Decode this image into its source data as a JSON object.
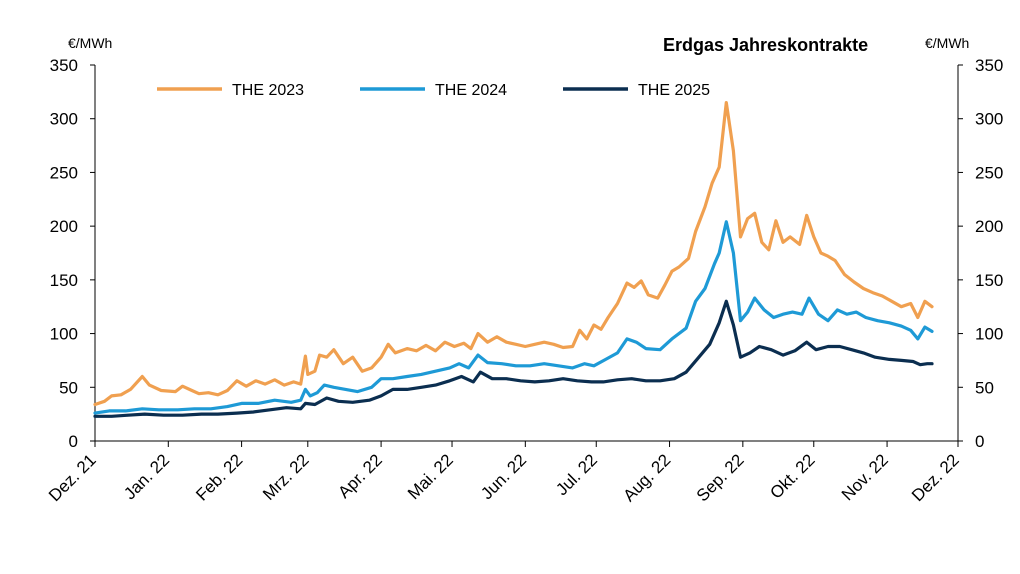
{
  "chart_data": {
    "type": "line",
    "title": "Erdgas Jahreskontrakte",
    "ylabel_left": "€/MWh",
    "ylabel_right": "€/MWh",
    "ylim": [
      0,
      350
    ],
    "yticks": [
      0,
      50,
      100,
      150,
      200,
      250,
      300,
      350
    ],
    "xlim": [
      "2021-12-01",
      "2022-12-01"
    ],
    "xtick_labels": [
      "Dez. 21",
      "Jan. 22",
      "Feb. 22",
      "Mrz. 22",
      "Apr. 22",
      "Mai. 22",
      "Jun. 22",
      "Jul. 22",
      "Aug. 22",
      "Sep. 22",
      "Okt. 22",
      "Nov. 22",
      "Dez. 22"
    ],
    "xtick_dates": [
      "2021-12-01",
      "2022-01-01",
      "2022-02-01",
      "2022-03-01",
      "2022-04-01",
      "2022-05-01",
      "2022-06-01",
      "2022-07-01",
      "2022-08-01",
      "2022-09-01",
      "2022-10-01",
      "2022-11-01",
      "2022-12-01"
    ],
    "grid": false,
    "legend_position": "top",
    "series": [
      {
        "name": "THE 2023",
        "color": "#F0A050",
        "points": [
          [
            "2021-12-01",
            34
          ],
          [
            "2021-12-05",
            37
          ],
          [
            "2021-12-08",
            42
          ],
          [
            "2021-12-12",
            43
          ],
          [
            "2021-12-16",
            48
          ],
          [
            "2021-12-21",
            60
          ],
          [
            "2021-12-24",
            52
          ],
          [
            "2021-12-29",
            47
          ],
          [
            "2022-01-04",
            46
          ],
          [
            "2022-01-07",
            51
          ],
          [
            "2022-01-11",
            47
          ],
          [
            "2022-01-14",
            44
          ],
          [
            "2022-01-18",
            45
          ],
          [
            "2022-01-22",
            43
          ],
          [
            "2022-01-26",
            47
          ],
          [
            "2022-01-30",
            56
          ],
          [
            "2022-02-03",
            51
          ],
          [
            "2022-02-07",
            56
          ],
          [
            "2022-02-11",
            53
          ],
          [
            "2022-02-15",
            57
          ],
          [
            "2022-02-19",
            52
          ],
          [
            "2022-02-23",
            55
          ],
          [
            "2022-02-26",
            53
          ],
          [
            "2022-02-28",
            79
          ],
          [
            "2022-03-01",
            62
          ],
          [
            "2022-03-04",
            65
          ],
          [
            "2022-03-06",
            80
          ],
          [
            "2022-03-09",
            78
          ],
          [
            "2022-03-12",
            85
          ],
          [
            "2022-03-16",
            72
          ],
          [
            "2022-03-20",
            78
          ],
          [
            "2022-03-24",
            65
          ],
          [
            "2022-03-28",
            68
          ],
          [
            "2022-04-01",
            78
          ],
          [
            "2022-04-04",
            90
          ],
          [
            "2022-04-07",
            82
          ],
          [
            "2022-04-12",
            86
          ],
          [
            "2022-04-16",
            84
          ],
          [
            "2022-04-20",
            89
          ],
          [
            "2022-04-24",
            84
          ],
          [
            "2022-04-28",
            92
          ],
          [
            "2022-05-02",
            88
          ],
          [
            "2022-05-06",
            91
          ],
          [
            "2022-05-09",
            86
          ],
          [
            "2022-05-12",
            100
          ],
          [
            "2022-05-16",
            92
          ],
          [
            "2022-05-20",
            97
          ],
          [
            "2022-05-24",
            92
          ],
          [
            "2022-05-28",
            90
          ],
          [
            "2022-06-01",
            88
          ],
          [
            "2022-06-05",
            90
          ],
          [
            "2022-06-09",
            92
          ],
          [
            "2022-06-13",
            90
          ],
          [
            "2022-06-17",
            87
          ],
          [
            "2022-06-21",
            88
          ],
          [
            "2022-06-24",
            103
          ],
          [
            "2022-06-27",
            95
          ],
          [
            "2022-06-30",
            108
          ],
          [
            "2022-07-03",
            104
          ],
          [
            "2022-07-06",
            115
          ],
          [
            "2022-07-10",
            128
          ],
          [
            "2022-07-14",
            147
          ],
          [
            "2022-07-17",
            143
          ],
          [
            "2022-07-20",
            149
          ],
          [
            "2022-07-23",
            136
          ],
          [
            "2022-07-27",
            133
          ],
          [
            "2022-07-30",
            145
          ],
          [
            "2022-08-02",
            158
          ],
          [
            "2022-08-05",
            162
          ],
          [
            "2022-08-09",
            170
          ],
          [
            "2022-08-12",
            195
          ],
          [
            "2022-08-16",
            218
          ],
          [
            "2022-08-19",
            240
          ],
          [
            "2022-08-22",
            255
          ],
          [
            "2022-08-25",
            315
          ],
          [
            "2022-08-28",
            270
          ],
          [
            "2022-08-31",
            190
          ],
          [
            "2022-09-03",
            207
          ],
          [
            "2022-09-06",
            212
          ],
          [
            "2022-09-09",
            185
          ],
          [
            "2022-09-12",
            178
          ],
          [
            "2022-09-15",
            205
          ],
          [
            "2022-09-18",
            185
          ],
          [
            "2022-09-21",
            190
          ],
          [
            "2022-09-25",
            183
          ],
          [
            "2022-09-28",
            210
          ],
          [
            "2022-10-01",
            190
          ],
          [
            "2022-10-04",
            175
          ],
          [
            "2022-10-07",
            172
          ],
          [
            "2022-10-10",
            168
          ],
          [
            "2022-10-14",
            155
          ],
          [
            "2022-10-18",
            148
          ],
          [
            "2022-10-22",
            142
          ],
          [
            "2022-10-26",
            138
          ],
          [
            "2022-10-30",
            135
          ],
          [
            "2022-11-03",
            130
          ],
          [
            "2022-11-07",
            125
          ],
          [
            "2022-11-11",
            128
          ],
          [
            "2022-11-14",
            115
          ],
          [
            "2022-11-17",
            130
          ],
          [
            "2022-11-20",
            125
          ]
        ]
      },
      {
        "name": "THE 2024",
        "color": "#1E9AD6",
        "points": [
          [
            "2021-12-01",
            26
          ],
          [
            "2021-12-07",
            28
          ],
          [
            "2021-12-14",
            28
          ],
          [
            "2021-12-21",
            30
          ],
          [
            "2021-12-28",
            29
          ],
          [
            "2022-01-05",
            29
          ],
          [
            "2022-01-12",
            30
          ],
          [
            "2022-01-19",
            30
          ],
          [
            "2022-01-26",
            32
          ],
          [
            "2022-02-01",
            35
          ],
          [
            "2022-02-08",
            35
          ],
          [
            "2022-02-15",
            38
          ],
          [
            "2022-02-22",
            36
          ],
          [
            "2022-02-26",
            38
          ],
          [
            "2022-02-28",
            48
          ],
          [
            "2022-03-02",
            42
          ],
          [
            "2022-03-05",
            45
          ],
          [
            "2022-03-08",
            52
          ],
          [
            "2022-03-12",
            50
          ],
          [
            "2022-03-17",
            48
          ],
          [
            "2022-03-22",
            46
          ],
          [
            "2022-03-28",
            50
          ],
          [
            "2022-04-01",
            58
          ],
          [
            "2022-04-06",
            58
          ],
          [
            "2022-04-12",
            60
          ],
          [
            "2022-04-18",
            62
          ],
          [
            "2022-04-24",
            65
          ],
          [
            "2022-04-30",
            68
          ],
          [
            "2022-05-04",
            72
          ],
          [
            "2022-05-08",
            68
          ],
          [
            "2022-05-12",
            80
          ],
          [
            "2022-05-16",
            73
          ],
          [
            "2022-05-22",
            72
          ],
          [
            "2022-05-28",
            70
          ],
          [
            "2022-06-03",
            70
          ],
          [
            "2022-06-09",
            72
          ],
          [
            "2022-06-15",
            70
          ],
          [
            "2022-06-21",
            68
          ],
          [
            "2022-06-26",
            72
          ],
          [
            "2022-06-30",
            70
          ],
          [
            "2022-07-05",
            76
          ],
          [
            "2022-07-10",
            82
          ],
          [
            "2022-07-14",
            95
          ],
          [
            "2022-07-18",
            92
          ],
          [
            "2022-07-22",
            86
          ],
          [
            "2022-07-28",
            85
          ],
          [
            "2022-08-02",
            95
          ],
          [
            "2022-08-08",
            105
          ],
          [
            "2022-08-12",
            130
          ],
          [
            "2022-08-16",
            142
          ],
          [
            "2022-08-20",
            165
          ],
          [
            "2022-08-22",
            175
          ],
          [
            "2022-08-25",
            204
          ],
          [
            "2022-08-28",
            175
          ],
          [
            "2022-08-31",
            112
          ],
          [
            "2022-09-03",
            120
          ],
          [
            "2022-09-06",
            133
          ],
          [
            "2022-09-10",
            122
          ],
          [
            "2022-09-14",
            115
          ],
          [
            "2022-09-18",
            118
          ],
          [
            "2022-09-22",
            120
          ],
          [
            "2022-09-26",
            118
          ],
          [
            "2022-09-29",
            133
          ],
          [
            "2022-10-03",
            118
          ],
          [
            "2022-10-07",
            112
          ],
          [
            "2022-10-11",
            122
          ],
          [
            "2022-10-15",
            118
          ],
          [
            "2022-10-19",
            120
          ],
          [
            "2022-10-23",
            115
          ],
          [
            "2022-10-28",
            112
          ],
          [
            "2022-11-02",
            110
          ],
          [
            "2022-11-07",
            107
          ],
          [
            "2022-11-11",
            103
          ],
          [
            "2022-11-14",
            95
          ],
          [
            "2022-11-17",
            106
          ],
          [
            "2022-11-20",
            102
          ]
        ]
      },
      {
        "name": "THE 2025",
        "color": "#0B2E50",
        "points": [
          [
            "2021-12-01",
            23
          ],
          [
            "2021-12-08",
            23
          ],
          [
            "2021-12-15",
            24
          ],
          [
            "2021-12-22",
            25
          ],
          [
            "2021-12-30",
            24
          ],
          [
            "2022-01-07",
            24
          ],
          [
            "2022-01-15",
            25
          ],
          [
            "2022-01-22",
            25
          ],
          [
            "2022-01-30",
            26
          ],
          [
            "2022-02-06",
            27
          ],
          [
            "2022-02-13",
            29
          ],
          [
            "2022-02-20",
            31
          ],
          [
            "2022-02-26",
            30
          ],
          [
            "2022-02-28",
            35
          ],
          [
            "2022-03-04",
            34
          ],
          [
            "2022-03-09",
            40
          ],
          [
            "2022-03-14",
            37
          ],
          [
            "2022-03-20",
            36
          ],
          [
            "2022-03-27",
            38
          ],
          [
            "2022-04-01",
            42
          ],
          [
            "2022-04-06",
            48
          ],
          [
            "2022-04-12",
            48
          ],
          [
            "2022-04-18",
            50
          ],
          [
            "2022-04-24",
            52
          ],
          [
            "2022-04-30",
            56
          ],
          [
            "2022-05-05",
            60
          ],
          [
            "2022-05-10",
            55
          ],
          [
            "2022-05-13",
            64
          ],
          [
            "2022-05-18",
            58
          ],
          [
            "2022-05-24",
            58
          ],
          [
            "2022-05-30",
            56
          ],
          [
            "2022-06-05",
            55
          ],
          [
            "2022-06-11",
            56
          ],
          [
            "2022-06-17",
            58
          ],
          [
            "2022-06-23",
            56
          ],
          [
            "2022-06-29",
            55
          ],
          [
            "2022-07-04",
            55
          ],
          [
            "2022-07-10",
            57
          ],
          [
            "2022-07-16",
            58
          ],
          [
            "2022-07-22",
            56
          ],
          [
            "2022-07-28",
            56
          ],
          [
            "2022-08-03",
            58
          ],
          [
            "2022-08-08",
            64
          ],
          [
            "2022-08-13",
            77
          ],
          [
            "2022-08-18",
            90
          ],
          [
            "2022-08-22",
            110
          ],
          [
            "2022-08-25",
            130
          ],
          [
            "2022-08-28",
            108
          ],
          [
            "2022-08-31",
            78
          ],
          [
            "2022-09-04",
            82
          ],
          [
            "2022-09-08",
            88
          ],
          [
            "2022-09-13",
            85
          ],
          [
            "2022-09-18",
            80
          ],
          [
            "2022-09-23",
            84
          ],
          [
            "2022-09-28",
            92
          ],
          [
            "2022-10-02",
            85
          ],
          [
            "2022-10-07",
            88
          ],
          [
            "2022-10-12",
            88
          ],
          [
            "2022-10-17",
            85
          ],
          [
            "2022-10-22",
            82
          ],
          [
            "2022-10-27",
            78
          ],
          [
            "2022-11-02",
            76
          ],
          [
            "2022-11-07",
            75
          ],
          [
            "2022-11-12",
            74
          ],
          [
            "2022-11-15",
            71
          ],
          [
            "2022-11-18",
            72
          ],
          [
            "2022-11-20",
            72
          ]
        ]
      }
    ]
  }
}
